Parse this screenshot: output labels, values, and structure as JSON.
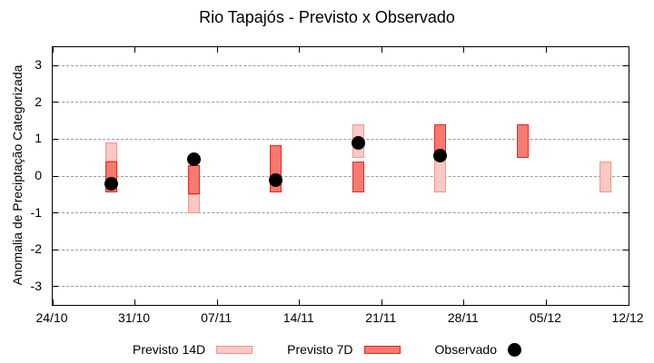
{
  "page_title": "Rio Tapajós - Previsto x Observado",
  "chart_data": {
    "type": "candlestick",
    "title": "Rio Tapajós - Previsto x Observado",
    "ylabel": "Anomalia de Preciptação Categorizada",
    "ylim": [
      -3.5,
      3.5
    ],
    "y_ticks": [
      3,
      2,
      1,
      0,
      -1,
      -2,
      -3
    ],
    "x_tick_labels": [
      "24/10",
      "31/10",
      "07/11",
      "14/11",
      "21/11",
      "28/11",
      "05/12",
      "12/12"
    ],
    "x_tick_days": [
      0,
      7,
      14,
      21,
      28,
      35,
      42,
      49
    ],
    "x_axis_total_days": 49,
    "grid": "horizontal-dashed",
    "legend_position": "bottom-center",
    "series": [
      {
        "name": "Previsto 14D",
        "type": "range-bar",
        "fill": "#f9c9c3",
        "border": "#f0978d"
      },
      {
        "name": "Previsto 7D",
        "type": "range-bar",
        "fill": "#f8796f",
        "border": "#e62821"
      },
      {
        "name": "Observado",
        "type": "point",
        "color": "#000000"
      }
    ],
    "clusters": [
      {
        "x_date": "29/10",
        "day_offset": 5,
        "previsto_14d": [
          0.9,
          0.4
        ],
        "previsto_7d": [
          0.4,
          -0.45
        ],
        "observado": -0.2
      },
      {
        "x_date": "05/11",
        "day_offset": 12,
        "previsto_14d": [
          -0.5,
          -1.0
        ],
        "previsto_7d": [
          0.3,
          -0.5
        ],
        "observado": 0.45
      },
      {
        "x_date": "12/11",
        "day_offset": 19,
        "previsto_14d": null,
        "previsto_7d": [
          0.85,
          -0.45
        ],
        "observado": -0.1
      },
      {
        "x_date": "19/11",
        "day_offset": 26,
        "previsto_14d": [
          1.4,
          0.5
        ],
        "previsto_7d": [
          0.4,
          -0.45
        ],
        "observado": 0.9
      },
      {
        "x_date": "26/11",
        "day_offset": 33,
        "previsto_14d": [
          0.55,
          -0.45
        ],
        "previsto_7d": [
          1.4,
          0.55
        ],
        "observado": 0.55
      },
      {
        "x_date": "03/12",
        "day_offset": 40,
        "previsto_14d": null,
        "previsto_7d": [
          1.4,
          0.5
        ],
        "observado": null
      },
      {
        "x_date": "10/12",
        "day_offset": 47,
        "previsto_14d": [
          0.4,
          -0.45
        ],
        "previsto_7d": null,
        "observado": null
      }
    ]
  },
  "legend": {
    "items": [
      {
        "label": "Previsto 14D"
      },
      {
        "label": "Previsto 7D"
      },
      {
        "label": "Observado"
      }
    ]
  }
}
